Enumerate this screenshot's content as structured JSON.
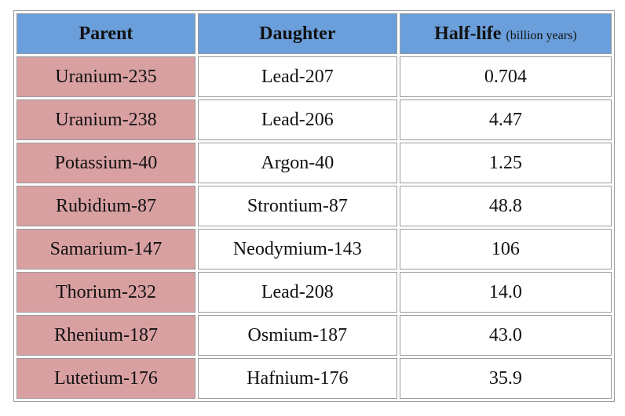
{
  "table": {
    "header": [
      "Parent",
      "Daughter",
      "Half-life"
    ],
    "header_unit": "(billion years)",
    "rows": [
      [
        "Uranium-235",
        "Lead-207",
        "0.704"
      ],
      [
        "Uranium-238",
        "Lead-206",
        "4.47"
      ],
      [
        "Potassium-40",
        "Argon-40",
        "1.25"
      ],
      [
        "Rubidium-87",
        "Strontium-87",
        "48.8"
      ],
      [
        "Samarium-147",
        "Neodymium-143",
        "106"
      ],
      [
        "Thorium-232",
        "Lead-208",
        "14.0"
      ],
      [
        "Rhenium-187",
        "Osmium-187",
        "43.0"
      ],
      [
        "Lutetium-176",
        "Hafnium-176",
        "35.9"
      ]
    ]
  }
}
